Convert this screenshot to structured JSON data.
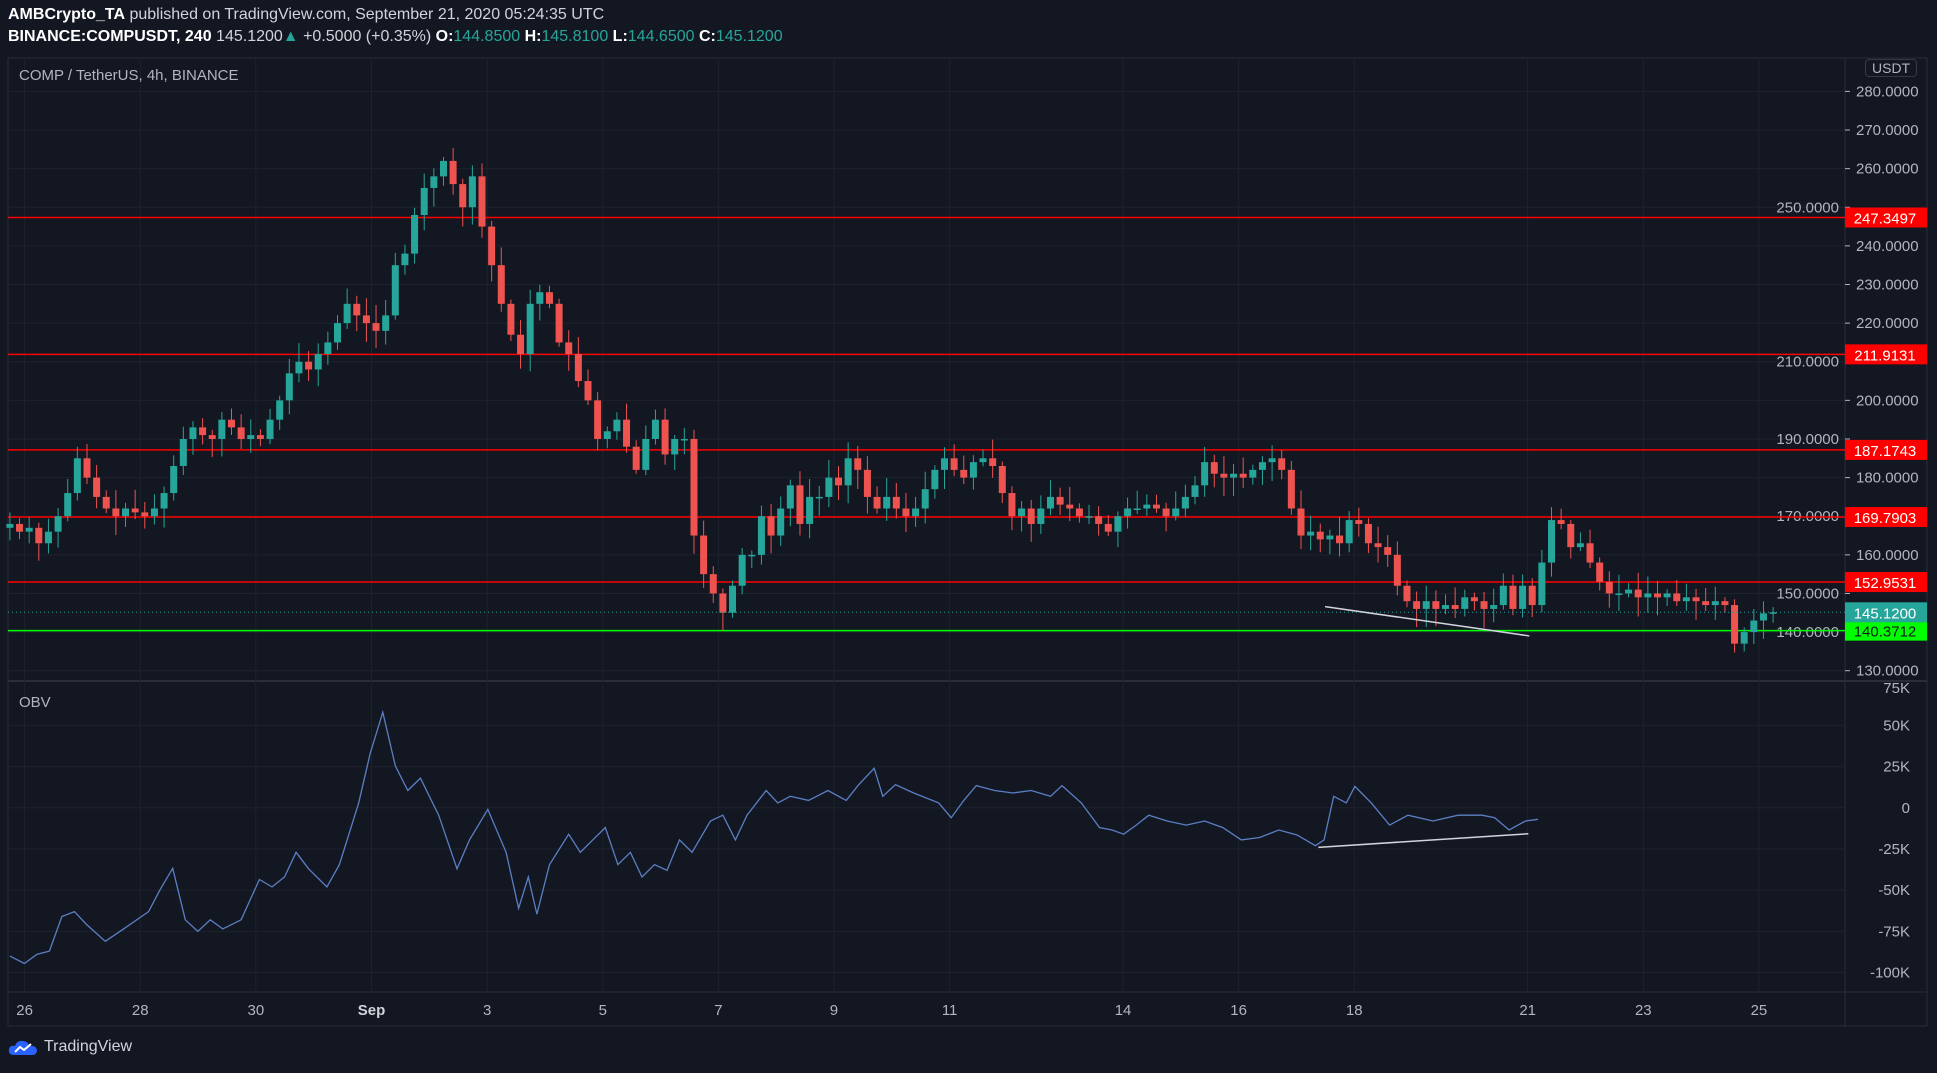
{
  "header": {
    "author": "AMBCrypto_TA",
    "published": " published on TradingView.com, September 21, 2020 05:24:35 UTC",
    "symbol": "BINANCE:COMPUSDT, 240",
    "last": "145.1200",
    "change": "+0.5000 (+0.35%)",
    "o_label": "O:",
    "o": "144.8500",
    "h_label": "H:",
    "h": "145.8100",
    "l_label": "L:",
    "l": "144.6500",
    "c_label": "C:",
    "c": "145.1200"
  },
  "pane_title": "COMP / TetherUS, 4h, BINANCE",
  "currency_button": "USDT",
  "indicator_title": "OBV",
  "footer_brand": "TradingView",
  "colors": {
    "bg": "#131722",
    "up": "#26a69a",
    "down": "#ef5350",
    "level_red": "#ff0000",
    "level_green": "#00ff00",
    "obv": "#5b7fc4",
    "trend": "#d1d4dc"
  },
  "chart_data": {
    "type": "candlestick",
    "interval": "4h",
    "price_axis": {
      "ticks": [
        130,
        140,
        150,
        160,
        170,
        180,
        190,
        200,
        210,
        220,
        230,
        240,
        250,
        260,
        270,
        280
      ],
      "ylim": [
        125,
        285
      ]
    },
    "time_axis": {
      "labels": [
        {
          "text": "26",
          "day": 0
        },
        {
          "text": "28",
          "day": 2
        },
        {
          "text": "30",
          "day": 4
        },
        {
          "text": "Sep",
          "day": 6
        },
        {
          "text": "3",
          "day": 8
        },
        {
          "text": "5",
          "day": 10
        },
        {
          "text": "7",
          "day": 12
        },
        {
          "text": "9",
          "day": 14
        },
        {
          "text": "11",
          "day": 16
        },
        {
          "text": "14",
          "day": 19
        },
        {
          "text": "16",
          "day": 21
        },
        {
          "text": "18",
          "day": 23
        },
        {
          "text": "21",
          "day": 26
        },
        {
          "text": "23",
          "day": 28
        },
        {
          "text": "25",
          "day": 30
        }
      ]
    },
    "closes": [
      168,
      166,
      167,
      163,
      166,
      170,
      176,
      185,
      180,
      175,
      172,
      170,
      172,
      171,
      170,
      172,
      176,
      183,
      190,
      193,
      191,
      190,
      195,
      193,
      190,
      191,
      190,
      195,
      200,
      207,
      210,
      208,
      212,
      215,
      220,
      225,
      222,
      220,
      218,
      222,
      235,
      238,
      248,
      255,
      258,
      262,
      256,
      250,
      258,
      245,
      235,
      225,
      217,
      212,
      225,
      228,
      225,
      215,
      212,
      205,
      200,
      190,
      192,
      195,
      188,
      182,
      190,
      195,
      186,
      190,
      190,
      165,
      155,
      150,
      145,
      152,
      160,
      160,
      170,
      165,
      172,
      178,
      168,
      175,
      175,
      180,
      178,
      185,
      182,
      175,
      172,
      175,
      172,
      170,
      172,
      177,
      182,
      185,
      182,
      180,
      184,
      185,
      183,
      176,
      170,
      172,
      168,
      172,
      175,
      173,
      172,
      170,
      170,
      168,
      166,
      170,
      172,
      172,
      173,
      172,
      170,
      172,
      175,
      178,
      184,
      181,
      180,
      181,
      180,
      182,
      184,
      185,
      182,
      172,
      165,
      166,
      164,
      165,
      163,
      169,
      168,
      163,
      162,
      160,
      152,
      148,
      146,
      148,
      146,
      147,
      146,
      149,
      148,
      146,
      147,
      152,
      146,
      152,
      147,
      158,
      169,
      168,
      162,
      163,
      158,
      153,
      150,
      150,
      151,
      149,
      150,
      149,
      150,
      148,
      149,
      148,
      147,
      148,
      147,
      137,
      140,
      143,
      144.85,
      145.12
    ],
    "levels": [
      {
        "value": "247.3497",
        "color": "red"
      },
      {
        "value": "211.9131",
        "color": "red"
      },
      {
        "value": "187.1743",
        "color": "red"
      },
      {
        "value": "169.7903",
        "color": "red"
      },
      {
        "value": "152.9531",
        "color": "red"
      },
      {
        "value": "140.3712",
        "color": "green"
      }
    ],
    "last_price": "145.1200",
    "price_trendline": [
      [
        136.5,
        146.6
      ],
      [
        157.7,
        139.0
      ]
    ],
    "obv": {
      "name": "OBV",
      "ticks": [
        {
          "v": 50,
          "t": "50K"
        },
        {
          "v": 25,
          "t": "25K"
        },
        {
          "v": 0,
          "t": "0"
        },
        {
          "v": -25,
          "t": "-25K"
        },
        {
          "v": -50,
          "t": "-50K"
        },
        {
          "v": -75,
          "t": "-75K"
        },
        {
          "v": -100,
          "t": "-100K"
        }
      ],
      "axis_extra": "75K",
      "units": "thousands",
      "points": [
        [
          0,
          -90
        ],
        [
          1.5,
          -94.5
        ],
        [
          2.8,
          -89
        ],
        [
          4.1,
          -87
        ],
        [
          5.4,
          -66
        ],
        [
          6.7,
          -63
        ],
        [
          7.9,
          -70.5
        ],
        [
          9.9,
          -81
        ],
        [
          11.8,
          -73.5
        ],
        [
          14.4,
          -63
        ],
        [
          15.6,
          -49.5
        ],
        [
          16.9,
          -36.75
        ],
        [
          18.2,
          -68
        ],
        [
          19.5,
          -75
        ],
        [
          20.8,
          -68
        ],
        [
          22.1,
          -73.5
        ],
        [
          24,
          -68
        ],
        [
          25.9,
          -43.5
        ],
        [
          27.2,
          -48
        ],
        [
          28.5,
          -42
        ],
        [
          29.7,
          -27
        ],
        [
          31,
          -37
        ],
        [
          32.9,
          -48
        ],
        [
          34.2,
          -34.5
        ],
        [
          36.2,
          3
        ],
        [
          37.4,
          33
        ],
        [
          38.7,
          58
        ],
        [
          40,
          25.5
        ],
        [
          41.3,
          10.5
        ],
        [
          42.6,
          18
        ],
        [
          44.5,
          -4.5
        ],
        [
          46.4,
          -37
        ],
        [
          47.7,
          -19.5
        ],
        [
          49.6,
          -1
        ],
        [
          51.5,
          -27
        ],
        [
          52.8,
          -61
        ],
        [
          53.8,
          -42
        ],
        [
          54.7,
          -64.5
        ],
        [
          56,
          -34.5
        ],
        [
          58,
          -16
        ],
        [
          59.2,
          -27
        ],
        [
          60.5,
          -19.5
        ],
        [
          61.8,
          -12
        ],
        [
          63.1,
          -34.5
        ],
        [
          64.4,
          -27
        ],
        [
          65.6,
          -42
        ],
        [
          66.9,
          -34.5
        ],
        [
          68.2,
          -38
        ],
        [
          69.5,
          -19.5
        ],
        [
          70.8,
          -27
        ],
        [
          72.7,
          -8
        ],
        [
          74,
          -4.5
        ],
        [
          75.3,
          -19.5
        ],
        [
          76.5,
          -4.5
        ],
        [
          78.5,
          10.5
        ],
        [
          79.7,
          3
        ],
        [
          81,
          7
        ],
        [
          82.9,
          4.5
        ],
        [
          84.9,
          10.5
        ],
        [
          86.8,
          4.5
        ],
        [
          88.1,
          14
        ],
        [
          89.7,
          24
        ],
        [
          90.6,
          7
        ],
        [
          91.9,
          14
        ],
        [
          93.8,
          9
        ],
        [
          96.4,
          3
        ],
        [
          97.7,
          -6
        ],
        [
          99,
          4.5
        ],
        [
          100.3,
          13.5
        ],
        [
          102.2,
          10.5
        ],
        [
          104.1,
          9
        ],
        [
          106,
          10.5
        ],
        [
          108,
          7
        ],
        [
          109.2,
          13.5
        ],
        [
          111.2,
          3
        ],
        [
          113.1,
          -12
        ],
        [
          114.4,
          -13.5
        ],
        [
          115.6,
          -16
        ],
        [
          116.9,
          -10.5
        ],
        [
          118.2,
          -4.5
        ],
        [
          120.1,
          -8
        ],
        [
          122.1,
          -10.5
        ],
        [
          124,
          -8
        ],
        [
          125.9,
          -12
        ],
        [
          127.8,
          -19.5
        ],
        [
          129.7,
          -18
        ],
        [
          131.7,
          -13.5
        ],
        [
          133.6,
          -16.5
        ],
        [
          135.5,
          -23
        ],
        [
          136.4,
          -19.5
        ],
        [
          137.4,
          7
        ],
        [
          138.7,
          3
        ],
        [
          139.6,
          13
        ],
        [
          141.3,
          3
        ],
        [
          143.2,
          -10.5
        ],
        [
          145.1,
          -4.5
        ],
        [
          147.7,
          -8
        ],
        [
          150.3,
          -4.5
        ],
        [
          152.8,
          -4.5
        ],
        [
          154.1,
          -6
        ],
        [
          155.6,
          -13.5
        ],
        [
          157.3,
          -8
        ],
        [
          158.6,
          -7
        ]
      ],
      "trendline": [
        [
          135.8,
          -24
        ],
        [
          157.6,
          -15.75
        ]
      ]
    }
  }
}
